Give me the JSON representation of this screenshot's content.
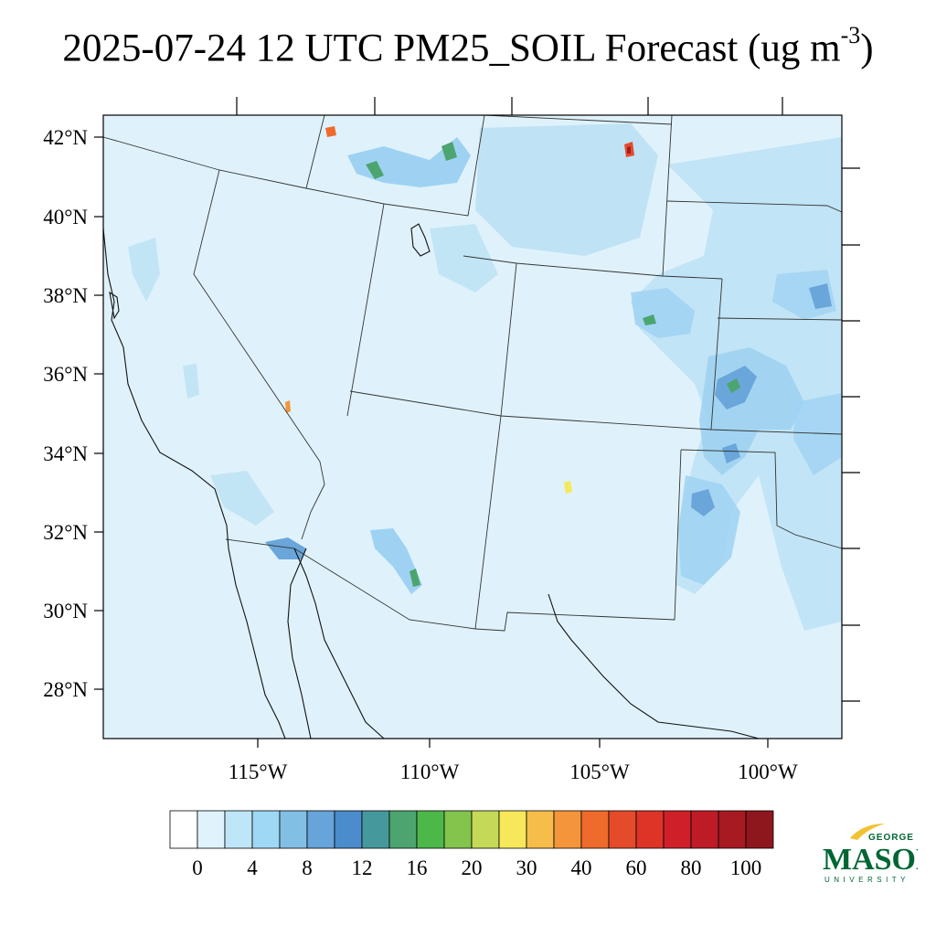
{
  "title": {
    "main": "2025-07-24 12 UTC PM25_SOIL Forecast (ug m",
    "exponent": "-3",
    "close": ")"
  },
  "axes": {
    "lat_labels": [
      "42°N",
      "40°N",
      "38°N",
      "36°N",
      "34°N",
      "32°N",
      "30°N",
      "28°N"
    ],
    "lon_labels": [
      "115°W",
      "110°W",
      "105°W",
      "100°W"
    ]
  },
  "colorbar": {
    "labels": [
      "0",
      "4",
      "8",
      "12",
      "16",
      "20",
      "30",
      "40",
      "60",
      "80",
      "100"
    ],
    "colors": [
      "#ffffff",
      "#e0f3fc",
      "#bfe6f8",
      "#9fd8f4",
      "#82bfe5",
      "#66a4d9",
      "#4a8ccc",
      "#45999c",
      "#4ca56f",
      "#4db84a",
      "#82c44c",
      "#c5d858",
      "#f6e85a",
      "#f7bd4a",
      "#f4953b",
      "#ef6b2c",
      "#e44b2a",
      "#dd3427",
      "#cf2029",
      "#bd1c26",
      "#a71a22",
      "#8e161d"
    ]
  },
  "map": {
    "background_color": "#dff2fb",
    "high_color": "#bfe3f5",
    "medium_color": "#92cbef",
    "strong_color": "#5fa2da"
  },
  "logo": {
    "top": "GEORGE",
    "main": "MASON",
    "bottom": "UNIVERSITY"
  }
}
